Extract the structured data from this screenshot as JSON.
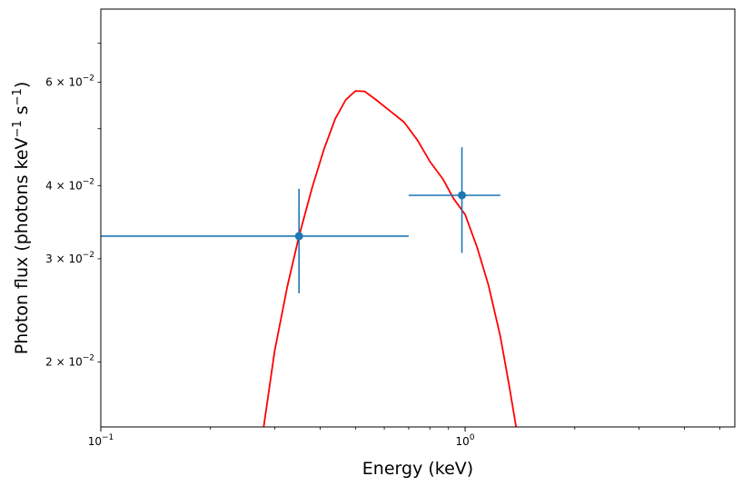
{
  "chart_data": {
    "type": "scatter",
    "xlabel": "Energy (keV)",
    "ylabel_main": "Photon flux (photons keV",
    "ylabel_exp1": "−1",
    "ylabel_mid": " s",
    "ylabel_exp2": "−1",
    "ylabel_end": ")",
    "xscale": "log",
    "yscale": "log",
    "xlim": [
      0.1,
      5.5
    ],
    "ylim": [
      0.0155,
      0.08
    ],
    "x_ticks": [
      {
        "value": 0.1,
        "base": "10",
        "exp": "−1"
      },
      {
        "value": 1.0,
        "base": "10",
        "exp": "0"
      }
    ],
    "y_ticks": [
      {
        "value": 0.02,
        "mant": "2 × 10",
        "exp": "−2"
      },
      {
        "value": 0.03,
        "mant": "3 × 10",
        "exp": "−2"
      },
      {
        "value": 0.04,
        "mant": "4 × 10",
        "exp": "−2"
      },
      {
        "value": 0.06,
        "mant": "6 × 10",
        "exp": "−2"
      }
    ],
    "data_points": [
      {
        "x": 0.35,
        "y": 0.0328,
        "xerr_low": 0.1,
        "xerr_high": 0.7,
        "yerr_low": 0.0262,
        "yerr_high": 0.0395
      },
      {
        "x": 0.98,
        "y": 0.0385,
        "xerr_low": 0.7,
        "xerr_high": 1.25,
        "yerr_low": 0.0307,
        "yerr_high": 0.0465
      }
    ],
    "model_curve": [
      {
        "x": 0.28,
        "y": 0.0155
      },
      {
        "x": 0.3,
        "y": 0.0209
      },
      {
        "x": 0.325,
        "y": 0.0269
      },
      {
        "x": 0.35,
        "y": 0.0328
      },
      {
        "x": 0.38,
        "y": 0.0396
      },
      {
        "x": 0.41,
        "y": 0.0462
      },
      {
        "x": 0.44,
        "y": 0.052
      },
      {
        "x": 0.47,
        "y": 0.056
      },
      {
        "x": 0.5,
        "y": 0.058
      },
      {
        "x": 0.53,
        "y": 0.0579
      },
      {
        "x": 0.57,
        "y": 0.056
      },
      {
        "x": 0.62,
        "y": 0.0537
      },
      {
        "x": 0.68,
        "y": 0.0513
      },
      {
        "x": 0.74,
        "y": 0.0478
      },
      {
        "x": 0.8,
        "y": 0.044
      },
      {
        "x": 0.87,
        "y": 0.041
      },
      {
        "x": 0.93,
        "y": 0.038
      },
      {
        "x": 1.0,
        "y": 0.0357
      },
      {
        "x": 1.08,
        "y": 0.0313
      },
      {
        "x": 1.16,
        "y": 0.027
      },
      {
        "x": 1.25,
        "y": 0.0221
      },
      {
        "x": 1.32,
        "y": 0.0183
      },
      {
        "x": 1.38,
        "y": 0.0155
      }
    ],
    "colors": {
      "data": "#1f77b4",
      "model": "#ff0000"
    },
    "grid": false,
    "legend": "none"
  }
}
